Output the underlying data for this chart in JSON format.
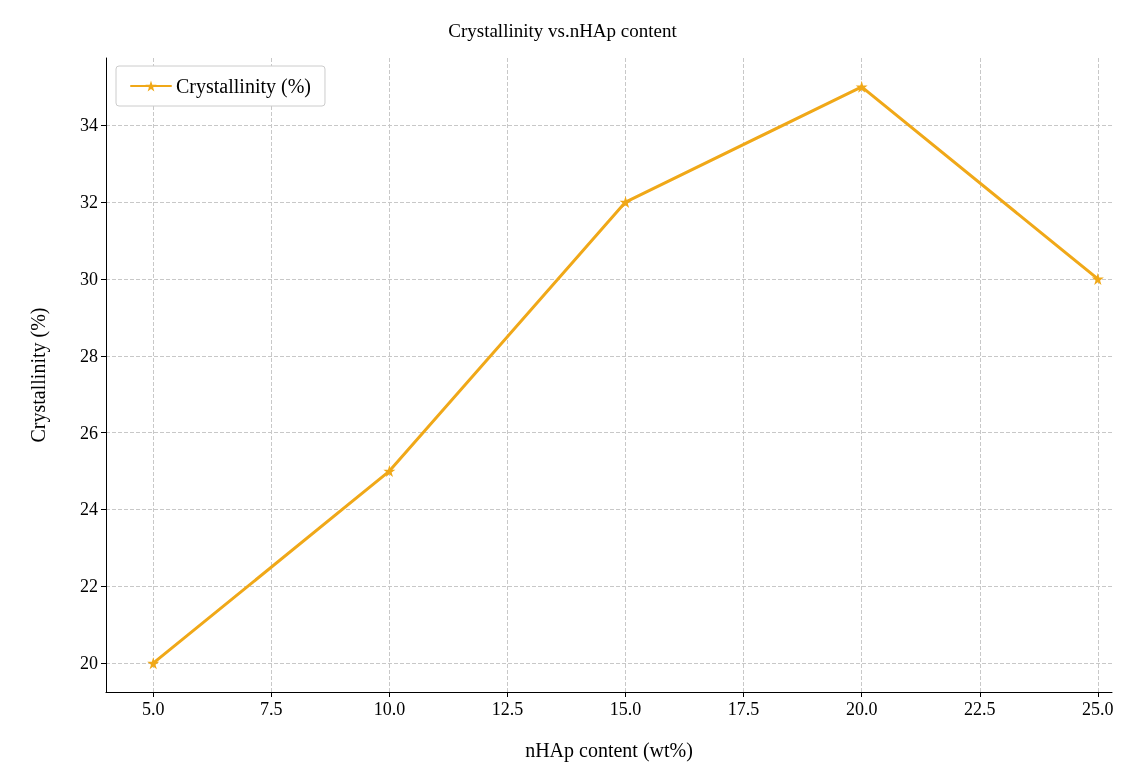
{
  "chart_data": {
    "type": "line",
    "title": "Crystallinity vs.nHAp content",
    "xlabel": "nHAp content (wt%)",
    "ylabel": "Crystallinity (%)",
    "x": [
      5,
      10,
      15,
      20,
      25
    ],
    "series": [
      {
        "name": "Crystallinity (%)",
        "color": "#f0a818",
        "values": [
          20,
          25,
          32,
          35,
          30
        ]
      }
    ],
    "xlim": [
      4,
      25.3
    ],
    "ylim": [
      19.25,
      35.75
    ],
    "xticks": [
      {
        "value": 5,
        "label": "5.0"
      },
      {
        "value": 7.5,
        "label": "7.5"
      },
      {
        "value": 10,
        "label": "10.0"
      },
      {
        "value": 12.5,
        "label": "12.5"
      },
      {
        "value": 15,
        "label": "15.0"
      },
      {
        "value": 17.5,
        "label": "17.5"
      },
      {
        "value": 20,
        "label": "20.0"
      },
      {
        "value": 22.5,
        "label": "22.5"
      },
      {
        "value": 25,
        "label": "25.0"
      }
    ],
    "yticks": [
      20,
      22,
      24,
      26,
      28,
      30,
      32,
      34
    ],
    "grid": true,
    "legend": "top left",
    "marker": "star",
    "line_style": "solid"
  }
}
